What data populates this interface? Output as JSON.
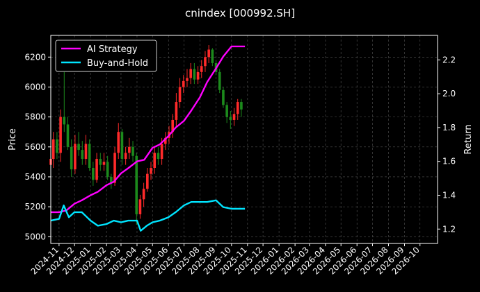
{
  "chart_data": {
    "type": "line",
    "title": "cnindex [000992.SH]",
    "xlabel": "",
    "ylabel_left": "Price",
    "ylabel_right": "Return",
    "x_ticks": [
      "2024-11",
      "2024-12",
      "2025-01",
      "2025-02",
      "2025-03",
      "2025-04",
      "2025-05",
      "2025-06",
      "2025-07",
      "2025-08",
      "2025-09",
      "2025-10",
      "2025-11",
      "2025-12",
      "2026-01",
      "2026-02",
      "2026-03",
      "2026-04",
      "2026-05",
      "2026-06",
      "2026-07",
      "2026-08",
      "2026-09",
      "2026-10"
    ],
    "y_left_ticks": [
      5000,
      5200,
      5400,
      5600,
      5800,
      6000,
      6200
    ],
    "y_right_ticks": [
      1.2,
      1.4,
      1.6,
      1.8,
      2.0,
      2.2
    ],
    "ylim_left": [
      4955,
      6345
    ],
    "ylim_right": [
      1.115,
      2.345
    ],
    "xlim": [
      "2024-10-16",
      "2026-11-04"
    ],
    "grid": true,
    "legend": {
      "placement": "top-left",
      "entries": [
        "AI Strategy",
        "Buy-and-Hold"
      ]
    },
    "colors": {
      "background": "#000000",
      "ai_strategy": "#ff00ff",
      "buy_and_hold": "#00e5ff",
      "candle_up": "#ff2a2a",
      "candle_down": "#1c8a1c",
      "grid": "#555555"
    },
    "candles": {
      "dates": [
        "2024-10-16",
        "2024-10-21",
        "2024-10-28",
        "2024-11-04",
        "2024-11-11",
        "2024-11-18",
        "2024-11-25",
        "2024-12-02",
        "2024-12-09",
        "2024-12-16",
        "2024-12-23",
        "2024-12-30",
        "2025-01-06",
        "2025-01-13",
        "2025-01-20",
        "2025-01-27",
        "2025-02-03",
        "2025-02-10",
        "2025-02-17",
        "2025-02-24",
        "2025-03-03",
        "2025-03-10",
        "2025-03-17",
        "2025-03-24",
        "2025-03-31",
        "2025-04-07",
        "2025-04-14",
        "2025-04-21",
        "2025-04-28",
        "2025-05-05",
        "2025-05-12",
        "2025-05-19",
        "2025-05-26",
        "2025-06-02",
        "2025-06-09",
        "2025-06-16",
        "2025-06-23",
        "2025-06-30",
        "2025-07-07",
        "2025-07-14",
        "2025-07-21",
        "2025-07-28",
        "2025-08-04",
        "2025-08-11",
        "2025-08-18",
        "2025-08-25",
        "2025-09-01",
        "2025-09-08",
        "2025-09-15",
        "2025-09-22",
        "2025-09-29",
        "2025-10-06",
        "2025-10-13",
        "2025-10-20"
      ],
      "open": [
        5480,
        5520,
        5650,
        5560,
        5800,
        5750,
        5600,
        5450,
        5620,
        5580,
        5520,
        5620,
        5460,
        5380,
        5520,
        5480,
        5500,
        5400,
        5360,
        5560,
        5700,
        5520,
        5560,
        5600,
        5540,
        5150,
        5250,
        5320,
        5420,
        5460,
        5560,
        5520,
        5620,
        5660,
        5700,
        5780,
        5900,
        6000,
        6040,
        6060,
        6120,
        6050,
        6100,
        6140,
        6200,
        6250,
        6160,
        6100,
        5980,
        5880,
        5800,
        5780,
        5820,
        5900
      ],
      "close": [
        5520,
        5650,
        5560,
        5800,
        5750,
        5600,
        5450,
        5620,
        5580,
        5520,
        5620,
        5460,
        5380,
        5520,
        5480,
        5500,
        5400,
        5360,
        5560,
        5700,
        5520,
        5560,
        5600,
        5540,
        5150,
        5250,
        5320,
        5420,
        5460,
        5560,
        5520,
        5620,
        5660,
        5700,
        5780,
        5900,
        6000,
        6040,
        6060,
        6120,
        6050,
        6100,
        6140,
        6200,
        6250,
        6160,
        6100,
        5980,
        5880,
        5800,
        5780,
        5820,
        5900,
        5850
      ],
      "high": [
        5560,
        5700,
        5700,
        5850,
        6100,
        5800,
        5650,
        5680,
        5700,
        5640,
        5680,
        5650,
        5500,
        5560,
        5560,
        5560,
        5540,
        5420,
        5600,
        5760,
        5720,
        5600,
        5660,
        5640,
        5560,
        5280,
        5360,
        5460,
        5500,
        5600,
        5600,
        5660,
        5700,
        5740,
        5820,
        5960,
        6060,
        6080,
        6120,
        6160,
        6160,
        6140,
        6180,
        6240,
        6280,
        6260,
        6180,
        6120,
        6000,
        5900,
        5840,
        5860,
        5920,
        5920
      ],
      "low": [
        5400,
        5460,
        5520,
        5500,
        5700,
        5580,
        5400,
        5420,
        5540,
        5480,
        5480,
        5440,
        5340,
        5360,
        5440,
        5440,
        5380,
        5320,
        5340,
        5520,
        5480,
        5480,
        5520,
        5500,
        5080,
        5120,
        5200,
        5300,
        5380,
        5420,
        5480,
        5480,
        5580,
        5620,
        5660,
        5740,
        5860,
        5960,
        6000,
        6020,
        6020,
        6020,
        6060,
        6100,
        6160,
        6140,
        6080,
        5960,
        5860,
        5760,
        5720,
        5740,
        5780,
        5800
      ]
    },
    "series": [
      {
        "name": "AI Strategy",
        "x": [
          "2024-10-16",
          "2024-11-01",
          "2024-11-15",
          "2024-12-01",
          "2024-12-15",
          "2025-01-01",
          "2025-01-15",
          "2025-02-01",
          "2025-02-15",
          "2025-03-01",
          "2025-03-15",
          "2025-04-01",
          "2025-04-15",
          "2025-05-01",
          "2025-05-15",
          "2025-06-01",
          "2025-06-15",
          "2025-07-01",
          "2025-07-15",
          "2025-08-01",
          "2025-08-15",
          "2025-09-01",
          "2025-09-15",
          "2025-10-01",
          "2025-10-15",
          "2025-10-27"
        ],
        "values": [
          1.3,
          1.3,
          1.31,
          1.35,
          1.37,
          1.4,
          1.42,
          1.46,
          1.48,
          1.53,
          1.56,
          1.6,
          1.61,
          1.68,
          1.7,
          1.75,
          1.8,
          1.84,
          1.9,
          1.98,
          2.07,
          2.15,
          2.22,
          2.28,
          2.28,
          2.28
        ]
      },
      {
        "name": "Buy-and-Hold",
        "x": [
          "2024-10-16",
          "2024-11-01",
          "2024-11-10",
          "2024-11-20",
          "2024-12-01",
          "2024-12-15",
          "2025-01-01",
          "2025-01-15",
          "2025-02-01",
          "2025-02-15",
          "2025-03-01",
          "2025-03-15",
          "2025-04-01",
          "2025-04-08",
          "2025-04-20",
          "2025-05-01",
          "2025-05-15",
          "2025-06-01",
          "2025-06-15",
          "2025-07-01",
          "2025-07-15",
          "2025-08-01",
          "2025-08-15",
          "2025-09-01",
          "2025-09-15",
          "2025-10-01",
          "2025-10-15",
          "2025-10-27"
        ],
        "values": [
          1.25,
          1.26,
          1.34,
          1.27,
          1.3,
          1.3,
          1.25,
          1.22,
          1.23,
          1.25,
          1.24,
          1.25,
          1.25,
          1.19,
          1.22,
          1.24,
          1.25,
          1.27,
          1.3,
          1.34,
          1.36,
          1.36,
          1.36,
          1.37,
          1.33,
          1.32,
          1.32,
          1.32
        ]
      }
    ]
  }
}
